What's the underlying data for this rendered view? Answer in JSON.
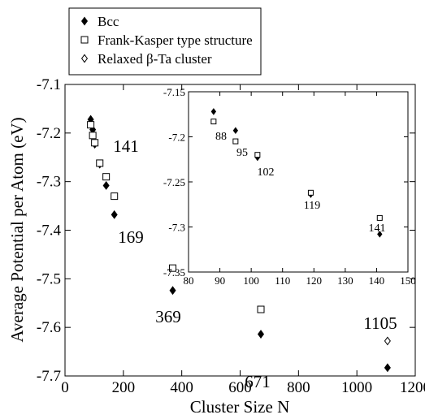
{
  "chart_data": [
    {
      "type": "scatter",
      "title": "",
      "xlabel": "Cluster Size N",
      "ylabel": "Average Potential per Atom (eV)",
      "xlim": [
        0,
        1200
      ],
      "ylim": [
        -7.7,
        -7.1
      ],
      "xticks": [
        0,
        200,
        400,
        600,
        800,
        1000,
        1200
      ],
      "yticks": [
        -7.1,
        -7.2,
        -7.3,
        -7.4,
        -7.5,
        -7.6,
        -7.7
      ],
      "xtick_labels": [
        "0",
        "200",
        "400",
        "600",
        "800",
        "1000",
        "1200"
      ],
      "ytick_labels": [
        "-7.1",
        "-7.2",
        "-7.3",
        "-7.4",
        "-7.5",
        "-7.6",
        "-7.7"
      ],
      "grid": false,
      "legend_position": "top-left outside",
      "series": [
        {
          "name": "Bcc",
          "marker": "filled-diamond",
          "points": [
            [
              88,
              -7.172
            ],
            [
              95,
              -7.193
            ],
            [
              102,
              -7.223
            ],
            [
              119,
              -7.264
            ],
            [
              141,
              -7.308
            ],
            [
              169,
              -7.368
            ],
            [
              369,
              -7.524
            ],
            [
              671,
              -7.614
            ],
            [
              1105,
              -7.683
            ]
          ]
        },
        {
          "name": "Frank-Kasper type structure",
          "marker": "open-square",
          "points": [
            [
              88,
              -7.183
            ],
            [
              95,
              -7.205
            ],
            [
              102,
              -7.22
            ],
            [
              119,
              -7.262
            ],
            [
              141,
              -7.29
            ],
            [
              169,
              -7.33
            ],
            [
              369,
              -7.478
            ],
            [
              671,
              -7.563
            ]
          ]
        },
        {
          "name": "Relaxed β-Ta cluster",
          "marker": "open-diamond",
          "points": [
            [
              1105,
              -7.628
            ]
          ]
        }
      ],
      "annotations": [
        {
          "text": "141",
          "x": 141
        },
        {
          "text": "169",
          "x": 169
        },
        {
          "text": "369",
          "x": 369
        },
        {
          "text": "671",
          "x": 671
        },
        {
          "text": "1105",
          "x": 1105
        }
      ]
    },
    {
      "type": "scatter",
      "title": "",
      "xlabel": "",
      "ylabel": "",
      "xlim": [
        80,
        150
      ],
      "ylim": [
        -7.35,
        -7.15
      ],
      "xticks": [
        80,
        90,
        100,
        110,
        120,
        130,
        140,
        150
      ],
      "yticks": [
        -7.15,
        -7.2,
        -7.25,
        -7.3,
        -7.35
      ],
      "xtick_labels": [
        "80",
        "90",
        "100",
        "110",
        "120",
        "130",
        "140",
        "150"
      ],
      "ytick_labels": [
        "-7.15",
        "-7.2",
        "-7.25",
        "-7.3",
        "-7.35"
      ],
      "grid": false,
      "series": [
        {
          "name": "Bcc",
          "marker": "filled-diamond",
          "points": [
            [
              88,
              -7.172
            ],
            [
              95,
              -7.193
            ],
            [
              102,
              -7.223
            ],
            [
              119,
              -7.264
            ],
            [
              141,
              -7.308
            ]
          ]
        },
        {
          "name": "Frank-Kasper type structure",
          "marker": "open-square",
          "points": [
            [
              88,
              -7.183
            ],
            [
              95,
              -7.205
            ],
            [
              102,
              -7.22
            ],
            [
              119,
              -7.262
            ],
            [
              141,
              -7.29
            ]
          ]
        }
      ],
      "annotations": [
        {
          "text": "88",
          "x": 88
        },
        {
          "text": "95",
          "x": 95
        },
        {
          "text": "102",
          "x": 102
        },
        {
          "text": "119",
          "x": 119
        },
        {
          "text": "141",
          "x": 141
        }
      ]
    }
  ]
}
